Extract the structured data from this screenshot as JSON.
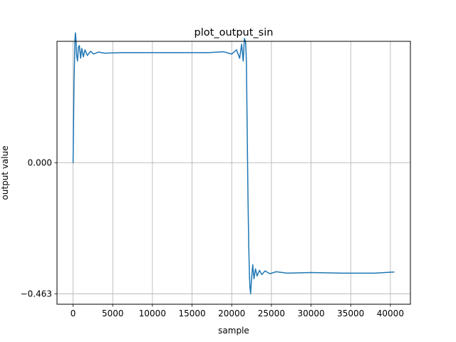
{
  "chart_data": {
    "type": "line",
    "title": "plot_output_sin",
    "xlabel": "sample",
    "ylabel": "output value",
    "xlim": [
      -2025,
      42525
    ],
    "ylim": [
      -0.5,
      0.43
    ],
    "grid": true,
    "x_ticks": [
      0,
      5000,
      10000,
      15000,
      20000,
      25000,
      30000,
      35000,
      40000
    ],
    "x_tick_labels": [
      "0",
      "5000",
      "10000",
      "15000",
      "20000",
      "25000",
      "30000",
      "35000",
      "40000"
    ],
    "y_ticks": [
      0.0,
      -0.463
    ],
    "y_tick_labels": [
      "0.000",
      "−0.463"
    ],
    "series": [
      {
        "color": "#1f77b4",
        "x": [
          0,
          120,
          240,
          300,
          360,
          450,
          560,
          680,
          800,
          950,
          1100,
          1300,
          1500,
          1800,
          2200,
          2600,
          3200,
          4000,
          6000,
          10000,
          14000,
          17000,
          19000,
          20000,
          20600,
          21000,
          21250,
          21450,
          21600,
          21750,
          21850,
          21950,
          22050,
          22150,
          22250,
          22300,
          22380,
          22500,
          22650,
          22800,
          23000,
          23200,
          23500,
          23800,
          24200,
          24800,
          25600,
          27000,
          30000,
          34000,
          38000,
          40500
        ],
        "y": [
          0.0,
          0.28,
          0.44,
          0.46,
          0.44,
          0.38,
          0.36,
          0.41,
          0.415,
          0.37,
          0.405,
          0.375,
          0.4,
          0.38,
          0.395,
          0.385,
          0.392,
          0.388,
          0.39,
          0.39,
          0.39,
          0.39,
          0.393,
          0.385,
          0.4,
          0.37,
          0.42,
          0.36,
          0.44,
          0.43,
          0.36,
          0.12,
          -0.12,
          -0.3,
          -0.41,
          -0.44,
          -0.463,
          -0.41,
          -0.36,
          -0.41,
          -0.375,
          -0.4,
          -0.38,
          -0.395,
          -0.382,
          -0.392,
          -0.385,
          -0.39,
          -0.388,
          -0.39,
          -0.39,
          -0.386
        ]
      }
    ]
  }
}
